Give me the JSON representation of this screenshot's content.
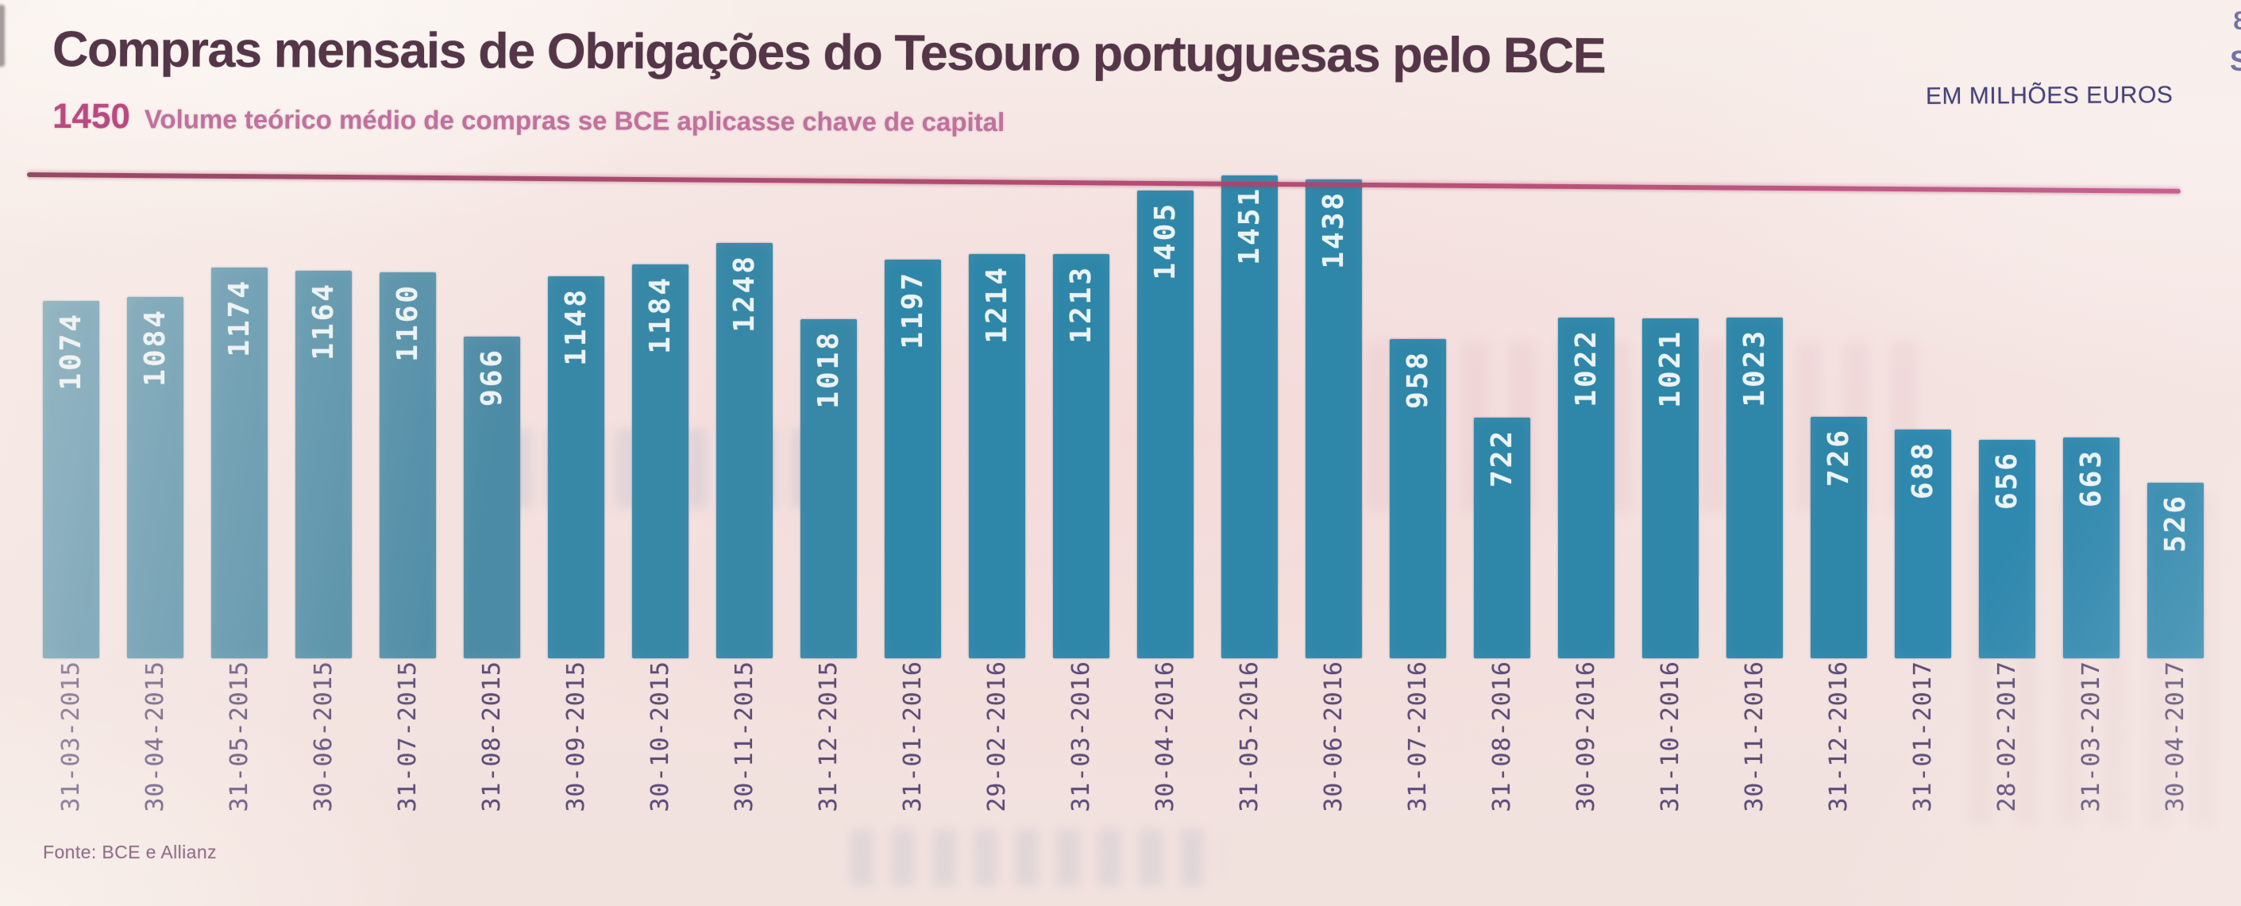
{
  "header": {
    "title": "Compras mensais de Obrigações do Tesouro portuguesas pelo BCE",
    "unit_label": "EM MILHÕES EUROS",
    "reference": {
      "value": "1450",
      "label": "Volume teórico médio de compras se BCE aplicasse chave de capital"
    }
  },
  "footer": {
    "source": "Fonte: BCE e Allianz"
  },
  "edge_artifacts": {
    "glyphs": [
      "8",
      "S"
    ]
  },
  "chart_data": {
    "type": "bar",
    "title": "Compras mensais de Obrigações do Tesouro portuguesas pelo BCE",
    "unit": "EM MILHÕES EUROS",
    "categories": [
      "31-03-2015",
      "30-04-2015",
      "31-05-2015",
      "30-06-2015",
      "31-07-2015",
      "31-08-2015",
      "30-09-2015",
      "30-10-2015",
      "30-11-2015",
      "31-12-2015",
      "31-01-2016",
      "29-02-2016",
      "31-03-2016",
      "30-04-2016",
      "31-05-2016",
      "30-06-2016",
      "31-07-2016",
      "31-08-2016",
      "30-09-2016",
      "31-10-2016",
      "30-11-2016",
      "31-12-2016",
      "31-01-2017",
      "28-02-2017",
      "31-03-2017",
      "30-04-2017"
    ],
    "values": [
      1074,
      1084,
      1174,
      1164,
      1160,
      966,
      1148,
      1184,
      1248,
      1018,
      1197,
      1214,
      1213,
      1405,
      1451,
      1438,
      958,
      722,
      1022,
      1021,
      1023,
      726,
      688,
      656,
      663,
      526
    ],
    "reference_line": {
      "value": 1450,
      "label": "Volume teórico médio de compras se BCE aplicasse chave de capital"
    },
    "ylim": [
      0,
      1500
    ],
    "grid": false,
    "legend": "none",
    "bar_color": "#2e86a8",
    "reference_color": "#b4446f",
    "value_label_color": "#ecf3f5",
    "source": "Fonte: BCE e Allianz"
  }
}
